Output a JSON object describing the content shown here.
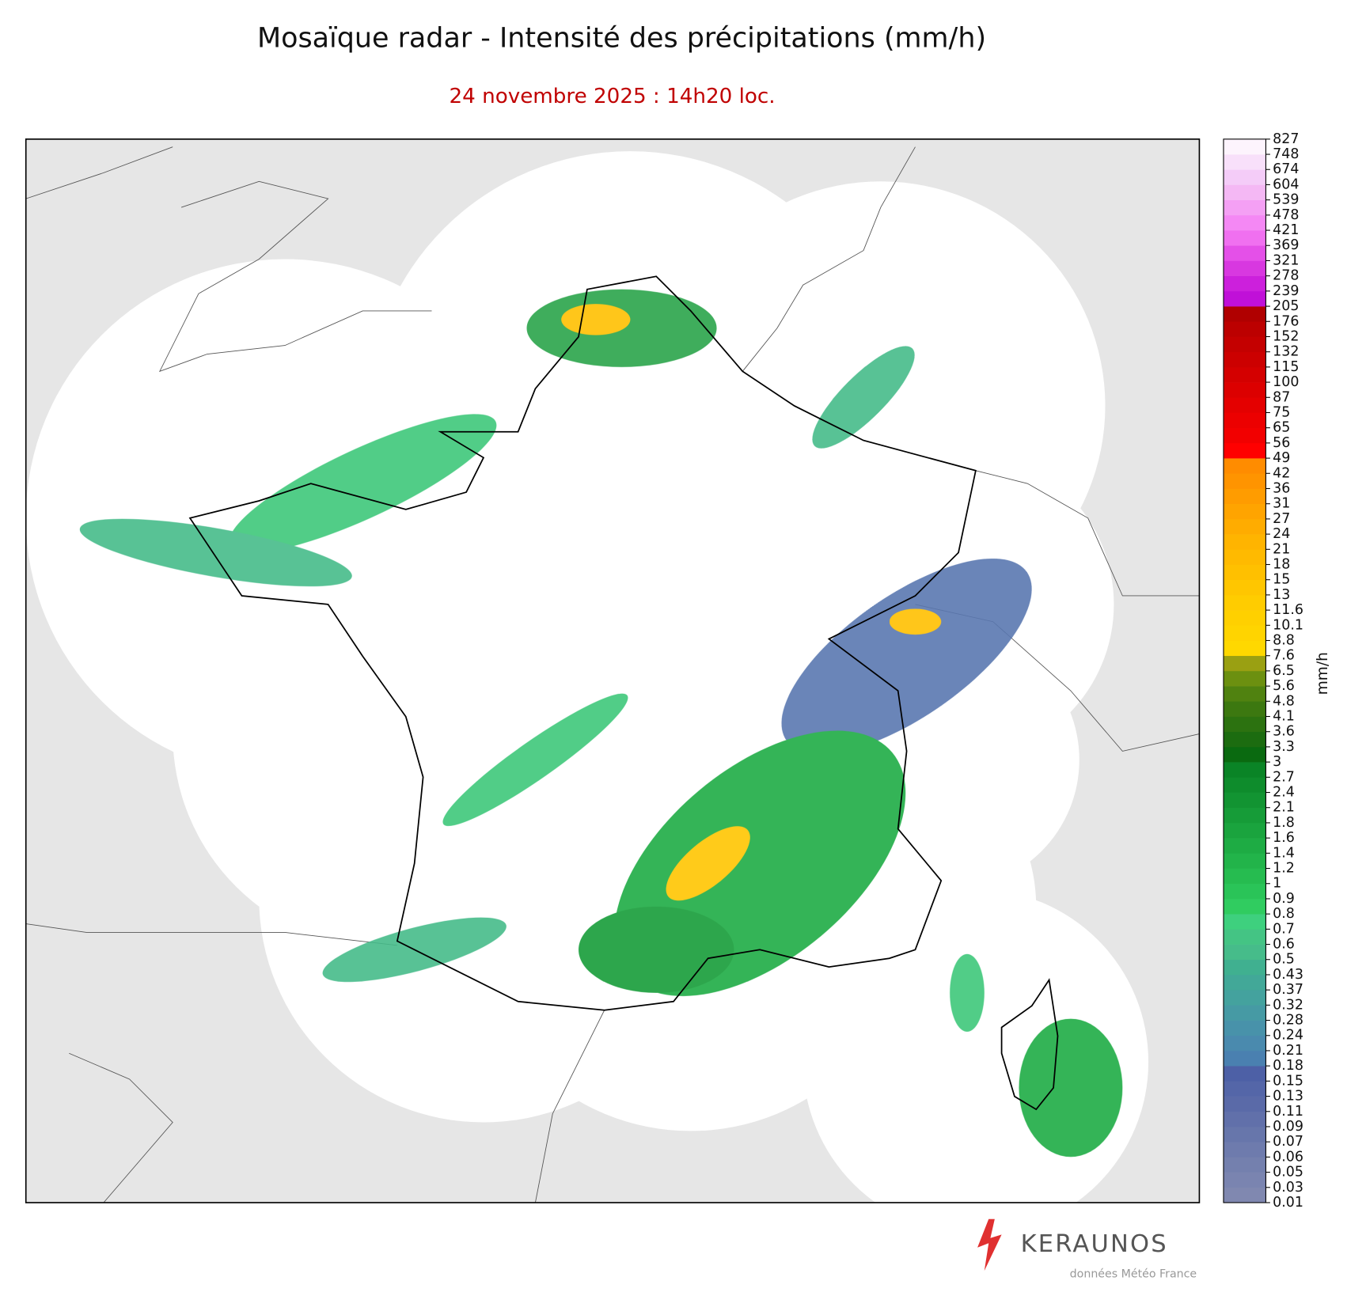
{
  "header": {
    "title": "Mosaïque radar - Intensité des précipitations (mm/h)",
    "subtitle": "24 novembre 2025 : 14h20 loc."
  },
  "colorbar": {
    "label": "mm/h",
    "ticks": [
      0.01,
      0.03,
      0.05,
      0.06,
      0.07,
      0.09,
      0.11,
      0.13,
      0.15,
      0.18,
      0.21,
      0.24,
      0.28,
      0.32,
      0.37,
      0.43,
      0.5,
      0.6,
      0.7,
      0.8,
      0.9,
      1,
      1.2,
      1.4,
      1.6,
      1.8,
      2.1,
      2.4,
      2.7,
      3,
      3.3,
      3.6,
      4.1,
      4.8,
      5.6,
      6.5,
      7.6,
      8.8,
      10.1,
      11.6,
      13,
      15,
      18,
      21,
      24,
      27,
      31,
      36,
      42,
      49,
      56,
      65,
      75,
      87,
      100,
      115,
      132,
      152,
      176,
      205,
      239,
      278,
      321,
      369,
      421,
      478,
      539,
      604,
      674,
      748,
      827
    ],
    "colors": [
      "#8088b0",
      "#7a84b0",
      "#7480ae",
      "#6e7bad",
      "#6776ab",
      "#6170aa",
      "#5a6aa8",
      "#5466a8",
      "#4d60a6",
      "#4a80b0",
      "#4a8aae",
      "#4892aa",
      "#469aa4",
      "#44a29e",
      "#42a898",
      "#40b090",
      "#46bc8a",
      "#44c484",
      "#3ed07e",
      "#30cc60",
      "#2ac458",
      "#26bc50",
      "#22b44a",
      "#1eac44",
      "#1aa43e",
      "#169c38",
      "#129432",
      "#0e8c2c",
      "#0a8426",
      "#0a6a10",
      "#1c6c10",
      "#2c7210",
      "#3c7810",
      "#508210",
      "#6c9010",
      "#9aa012",
      "#ffd800",
      "#ffd400",
      "#ffd000",
      "#ffcc00",
      "#ffc600",
      "#ffc000",
      "#ffba00",
      "#ffb400",
      "#ffac00",
      "#ffa400",
      "#ff9c00",
      "#ff9400",
      "#ff8c00",
      "#ff0000",
      "#f20000",
      "#ec0000",
      "#e40000",
      "#dc0000",
      "#d40000",
      "#cc0000",
      "#c40000",
      "#bc0000",
      "#b00000",
      "#c010d8",
      "#cc20dc",
      "#d838e0",
      "#e450e8",
      "#f070f0",
      "#f488f4",
      "#f4a0f4",
      "#f4b8f4",
      "#f4ccf8",
      "#f8e0fa",
      "#fdf4fd"
    ]
  },
  "footer": {
    "brand": "KERAUNOS",
    "credit": "données Météo France"
  }
}
